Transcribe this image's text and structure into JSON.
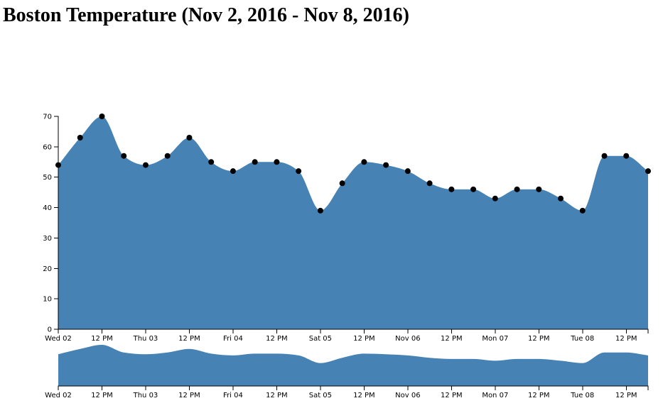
{
  "title": "Boston Temperature (Nov 2, 2016 - Nov 8, 2016)",
  "colors": {
    "area": "#4682b4",
    "point": "#000000"
  },
  "chart_data": {
    "type": "area",
    "title": "Boston Temperature (Nov 2, 2016 - Nov 8, 2016)",
    "xlabel": "",
    "ylabel": "",
    "x_range": [
      "2016-11-02T00:00",
      "2016-11-08T18:00"
    ],
    "ylim": [
      0,
      70
    ],
    "y_ticks": [
      0,
      10,
      20,
      30,
      40,
      50,
      60,
      70
    ],
    "x_ticks": [
      {
        "t": "2016-11-02T00:00",
        "label": "Wed 02"
      },
      {
        "t": "2016-11-02T12:00",
        "label": "12 PM"
      },
      {
        "t": "2016-11-03T00:00",
        "label": "Thu 03"
      },
      {
        "t": "2016-11-03T12:00",
        "label": "12 PM"
      },
      {
        "t": "2016-11-04T00:00",
        "label": "Fri 04"
      },
      {
        "t": "2016-11-04T12:00",
        "label": "12 PM"
      },
      {
        "t": "2016-11-05T00:00",
        "label": "Sat 05"
      },
      {
        "t": "2016-11-05T12:00",
        "label": "12 PM"
      },
      {
        "t": "2016-11-06T00:00",
        "label": "Nov 06"
      },
      {
        "t": "2016-11-06T12:00",
        "label": "12 PM"
      },
      {
        "t": "2016-11-07T00:00",
        "label": "Mon 07"
      },
      {
        "t": "2016-11-07T12:00",
        "label": "12 PM"
      },
      {
        "t": "2016-11-08T00:00",
        "label": "Tue 08"
      },
      {
        "t": "2016-11-08T12:00",
        "label": "12 PM"
      }
    ],
    "grid": false,
    "series": [
      {
        "x": [
          "2016-11-02T00:00",
          "2016-11-02T06:00",
          "2016-11-02T12:00",
          "2016-11-02T18:00",
          "2016-11-03T00:00",
          "2016-11-03T06:00",
          "2016-11-03T12:00",
          "2016-11-03T18:00",
          "2016-11-04T00:00",
          "2016-11-04T06:00",
          "2016-11-04T12:00",
          "2016-11-04T18:00",
          "2016-11-05T00:00",
          "2016-11-05T06:00",
          "2016-11-05T12:00",
          "2016-11-05T18:00",
          "2016-11-06T00:00",
          "2016-11-06T06:00",
          "2016-11-06T12:00",
          "2016-11-06T18:00",
          "2016-11-07T00:00",
          "2016-11-07T06:00",
          "2016-11-07T12:00",
          "2016-11-07T18:00",
          "2016-11-08T00:00",
          "2016-11-08T06:00",
          "2016-11-08T12:00",
          "2016-11-08T18:00"
        ],
        "values": [
          54,
          63,
          70,
          57,
          54,
          57,
          63,
          55,
          52,
          55,
          55,
          52,
          39,
          48,
          55,
          54,
          52,
          48,
          46,
          46,
          43,
          46,
          46,
          43,
          39,
          57,
          57,
          52
        ]
      }
    ],
    "context_chart": {
      "type": "area",
      "description_free": true,
      "ylim": [
        0,
        70
      ]
    }
  }
}
